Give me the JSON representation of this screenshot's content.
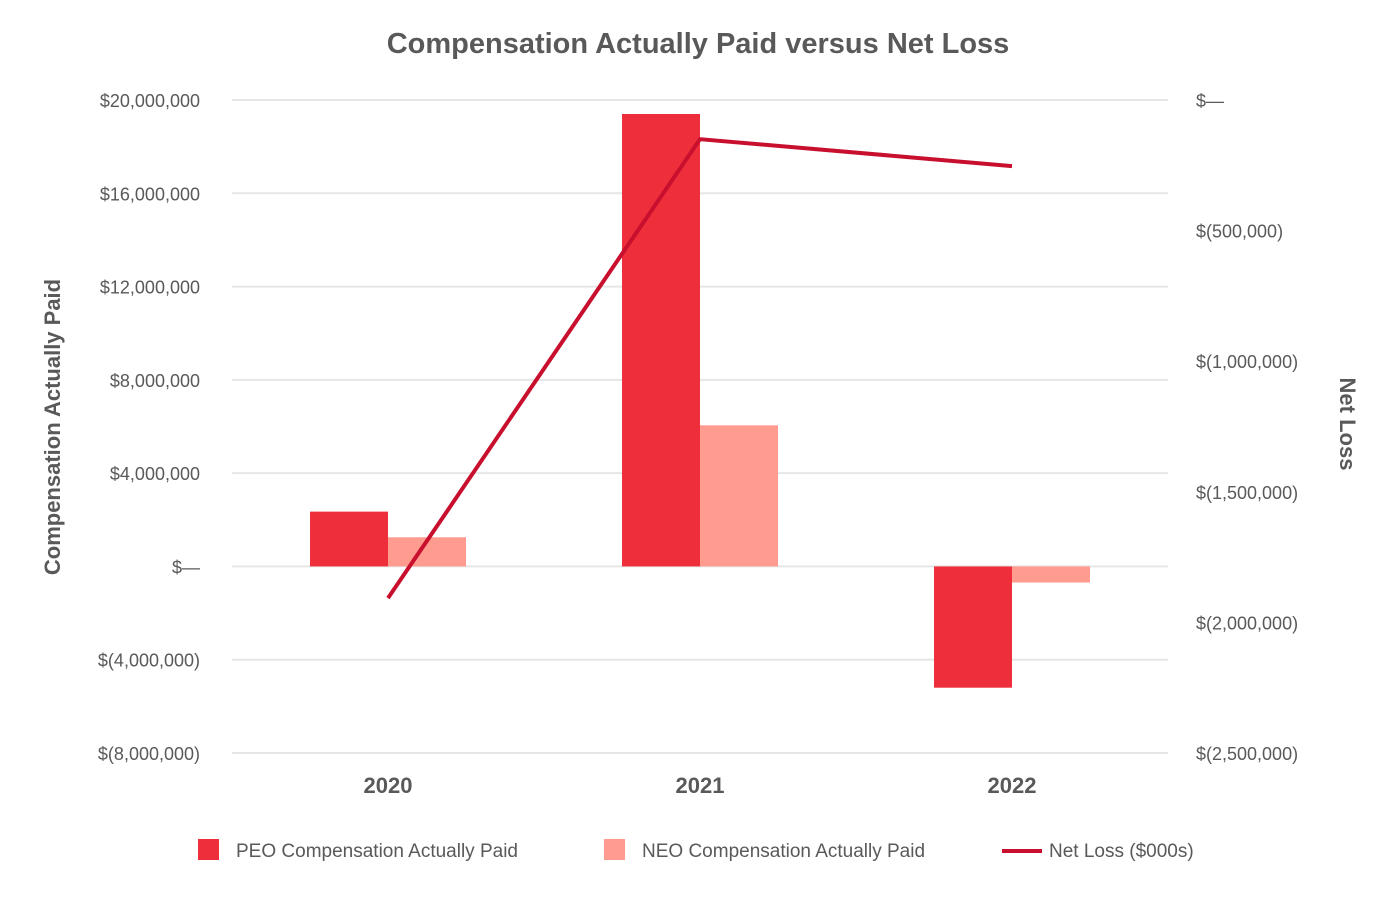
{
  "chart_data": {
    "type": "bar",
    "title": "Compensation Actually Paid versus Net Loss",
    "categories": [
      "2020",
      "2021",
      "2022"
    ],
    "ylabel": "Compensation Actually Paid",
    "y2label": "Net Loss",
    "ylim": [
      -8000000,
      20000000
    ],
    "y2lim": [
      -2500000,
      0
    ],
    "yticks": [
      {
        "value": 20000000,
        "label": "$20,000,000"
      },
      {
        "value": 16000000,
        "label": "$16,000,000"
      },
      {
        "value": 12000000,
        "label": "$12,000,000"
      },
      {
        "value": 8000000,
        "label": "$8,000,000"
      },
      {
        "value": 4000000,
        "label": "$4,000,000"
      },
      {
        "value": 0,
        "label": "$—"
      },
      {
        "value": -4000000,
        "label": "$(4,000,000)"
      },
      {
        "value": -8000000,
        "label": "$(8,000,000)"
      }
    ],
    "y2ticks": [
      {
        "value": 0,
        "label": "$—"
      },
      {
        "value": -500000,
        "label": "$(500,000)"
      },
      {
        "value": -1000000,
        "label": "$(1,000,000)"
      },
      {
        "value": -1500000,
        "label": "$(1,500,000)"
      },
      {
        "value": -2000000,
        "label": "$(2,000,000)"
      },
      {
        "value": -2500000,
        "label": "$(2,500,000)"
      }
    ],
    "grid": true,
    "legend_position": "bottom",
    "series": [
      {
        "name": "PEO Compensation Actually Paid",
        "type": "bar",
        "axis": "left",
        "color": "#EE2E3A",
        "values": [
          2350000,
          19400000,
          -5200000
        ]
      },
      {
        "name": "NEO Compensation Actually Paid",
        "type": "bar",
        "axis": "left",
        "color": "#FF9B8F",
        "values": [
          1250000,
          6050000,
          -690000
        ]
      },
      {
        "name": "Net Loss ($000s)",
        "type": "line",
        "axis": "right",
        "color": "#C8102E",
        "values": [
          -1907000,
          -150000,
          -253000
        ]
      }
    ]
  }
}
